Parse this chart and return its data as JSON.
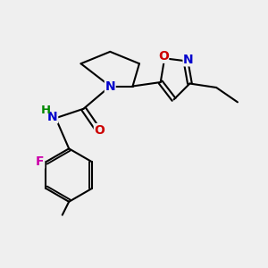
{
  "bg_color": "#efefef",
  "bond_color": "#000000",
  "bond_width": 1.5,
  "atom_colors": {
    "N": "#0000cc",
    "O": "#cc0000",
    "F": "#cc00aa",
    "H": "#008800",
    "C": "#000000"
  },
  "font_size": 10,
  "figsize": [
    3.0,
    3.0
  ],
  "dpi": 100
}
